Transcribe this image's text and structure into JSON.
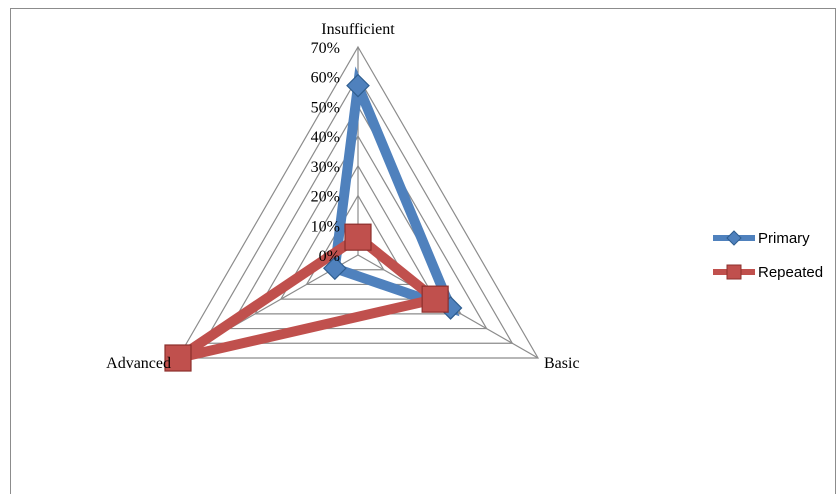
{
  "chart_data": {
    "type": "radar",
    "axes": [
      "Insufficient",
      "Basic",
      "Advanced"
    ],
    "tick_labels": [
      "0%",
      "10%",
      "20%",
      "30%",
      "40%",
      "50%",
      "60%",
      "70%"
    ],
    "rlim": [
      0,
      0.7
    ],
    "grid": true,
    "legend_position": "right",
    "series": [
      {
        "name": "Primary",
        "values": [
          0.57,
          0.36,
          0.09
        ],
        "color": "#4f81bd",
        "marker": "diamond"
      },
      {
        "name": "Repeated",
        "values": [
          0.06,
          0.3,
          0.7
        ],
        "color": "#c0504d",
        "marker": "square"
      }
    ]
  }
}
